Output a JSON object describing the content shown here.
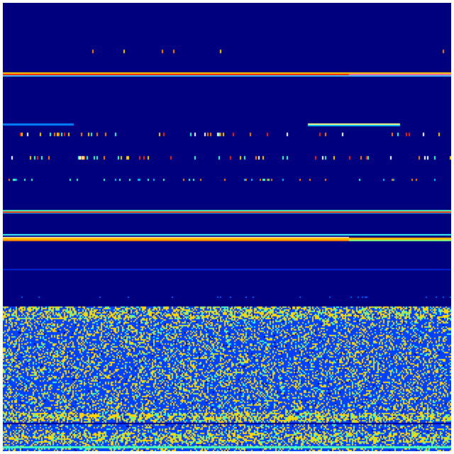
{
  "chart_data": {
    "type": "heatmap",
    "colormap": "jet",
    "title": "",
    "xlabel": "",
    "ylabel": "",
    "grid": false,
    "legend": "none",
    "colors": {
      "background": "#00007f",
      "low": "#0000c8",
      "mid_low": "#0040ff",
      "mid": "#40ffc0",
      "high": "#ffd700",
      "peak": "#ff0000"
    }
  }
}
